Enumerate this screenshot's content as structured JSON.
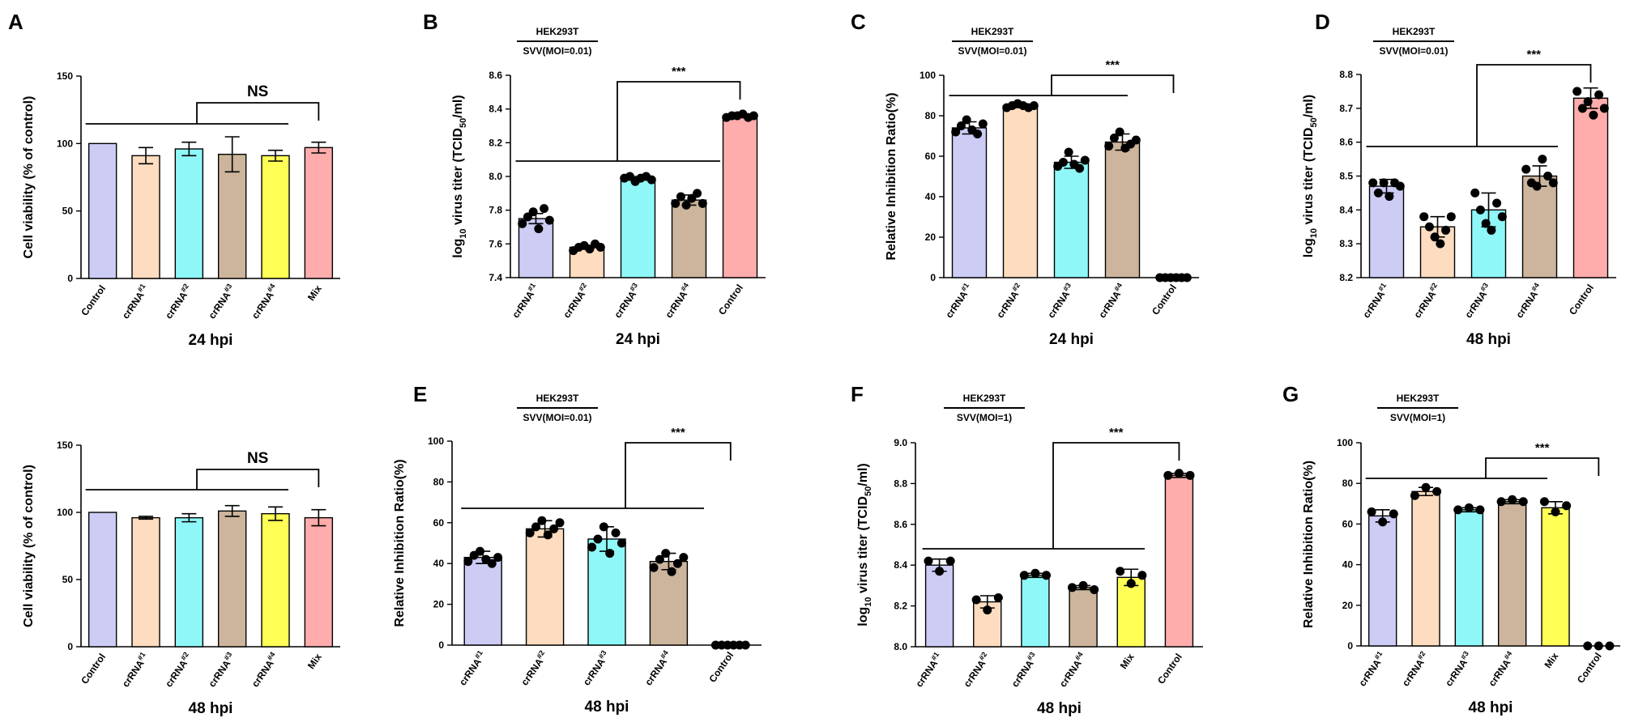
{
  "colors": {
    "crRNA#1": "#ccccf5",
    "crRNA#2": "#fddcbf",
    "crRNA#3": "#8ff7f7",
    "crRNA#4": "#ccb59c",
    "Mix": "#ffff55",
    "Control": "#ffacac",
    "ControlWhite": "#ccccf5"
  },
  "chart_data": [
    {
      "id": "A1",
      "letter": "A",
      "type": "bar",
      "ylabel": "Cell viability (% of control)",
      "xlabel": "24 hpi",
      "ylim": [
        0,
        150
      ],
      "yticks": [
        "0",
        "50",
        "100",
        "150"
      ],
      "categories": [
        "Control",
        "crRNA",
        "crRNA",
        "crRNA",
        "crRNA",
        "Mix"
      ],
      "superscripts": [
        "",
        "#1",
        "#2",
        "#3",
        "#4",
        ""
      ],
      "colorKeys": [
        "ControlWhite",
        "crRNA#2",
        "crRNA#3",
        "crRNA#4",
        "Mix",
        "Control"
      ],
      "values": [
        100,
        91,
        96,
        92,
        91,
        97
      ],
      "errors": [
        0,
        6,
        5,
        13,
        4,
        4
      ],
      "significance": "NS"
    },
    {
      "id": "A2",
      "letter": "",
      "type": "bar",
      "ylabel": "Cell viability (% of control)",
      "xlabel": "48 hpi",
      "ylim": [
        0,
        150
      ],
      "yticks": [
        "0",
        "50",
        "100",
        "150"
      ],
      "categories": [
        "Control",
        "crRNA",
        "crRNA",
        "crRNA",
        "crRNA",
        "Mix"
      ],
      "superscripts": [
        "",
        "#1",
        "#2",
        "#3",
        "#4",
        ""
      ],
      "colorKeys": [
        "ControlWhite",
        "crRNA#2",
        "crRNA#3",
        "crRNA#4",
        "Mix",
        "Control"
      ],
      "values": [
        100,
        96,
        96,
        101,
        99,
        96
      ],
      "errors": [
        0,
        1,
        3,
        4,
        5,
        6
      ],
      "significance": "NS"
    },
    {
      "id": "B",
      "letter": "B",
      "type": "bar",
      "header": "HEK293T",
      "subheader": "SVV(MOI=0.01)",
      "ylabel": "log10 virus titer (TCID50/ml)",
      "xlabel": "24 hpi",
      "ylim": [
        7.4,
        8.6
      ],
      "yticks": [
        "7.4",
        "7.6",
        "7.8",
        "8.0",
        "8.2",
        "8.4",
        "8.6"
      ],
      "categories": [
        "crRNA",
        "crRNA",
        "crRNA",
        "crRNA",
        "Control"
      ],
      "superscripts": [
        "#1",
        "#2",
        "#3",
        "#4",
        ""
      ],
      "colorKeys": [
        "crRNA#1",
        "crRNA#2",
        "crRNA#3",
        "crRNA#4",
        "Control"
      ],
      "values": [
        7.75,
        7.58,
        7.99,
        7.86,
        8.36
      ],
      "errors": [
        0.03,
        0.01,
        0.01,
        0.03,
        0.01
      ],
      "points": [
        [
          7.72,
          7.76,
          7.79,
          7.69,
          7.81,
          7.74
        ],
        [
          7.56,
          7.58,
          7.59,
          7.57,
          7.6,
          7.58
        ],
        [
          7.99,
          8.0,
          7.97,
          7.99,
          8.0,
          7.98
        ],
        [
          7.84,
          7.88,
          7.83,
          7.87,
          7.9,
          7.84
        ],
        [
          8.35,
          8.36,
          8.36,
          8.37,
          8.35,
          8.36
        ]
      ],
      "significance": "***"
    },
    {
      "id": "C",
      "letter": "C",
      "type": "bar",
      "header": "HEK293T",
      "subheader": "SVV(MOI=0.01)",
      "ylabel": "Relative Inhibition Ratio(%)",
      "xlabel": "24 hpi",
      "ylim": [
        0,
        100
      ],
      "yticks": [
        "0",
        "20",
        "40",
        "60",
        "80",
        "100"
      ],
      "categories": [
        "crRNA",
        "crRNA",
        "crRNA",
        "crRNA",
        "Control"
      ],
      "superscripts": [
        "#1",
        "#2",
        "#3",
        "#4",
        ""
      ],
      "colorKeys": [
        "crRNA#1",
        "crRNA#2",
        "crRNA#3",
        "crRNA#4",
        "Control"
      ],
      "values": [
        74,
        85,
        57,
        67,
        0
      ],
      "errors": [
        3,
        1,
        3,
        4,
        0
      ],
      "points": [
        [
          72,
          75,
          78,
          73,
          71,
          76
        ],
        [
          84,
          85,
          86,
          85,
          84,
          85
        ],
        [
          55,
          57,
          62,
          56,
          54,
          58
        ],
        [
          65,
          69,
          72,
          64,
          66,
          68
        ],
        [
          0,
          0,
          0,
          0,
          0,
          0
        ]
      ],
      "significance": "***"
    },
    {
      "id": "D",
      "letter": "D",
      "type": "bar",
      "header": "HEK293T",
      "subheader": "SVV(MOI=0.01)",
      "ylabel": "log10 virus titer (TCID50/ml)",
      "xlabel": "48 hpi",
      "ylim": [
        8.2,
        8.8
      ],
      "yticks": [
        "8.2",
        "8.3",
        "8.4",
        "8.5",
        "8.6",
        "8.7",
        "8.8"
      ],
      "categories": [
        "crRNA",
        "crRNA",
        "crRNA",
        "crRNA",
        "Control"
      ],
      "superscripts": [
        "#1",
        "#2",
        "#3",
        "#4",
        ""
      ],
      "colorKeys": [
        "crRNA#1",
        "crRNA#2",
        "crRNA#3",
        "crRNA#4",
        "Control"
      ],
      "values": [
        8.47,
        8.35,
        8.4,
        8.5,
        8.73
      ],
      "errors": [
        0.02,
        0.03,
        0.05,
        0.03,
        0.03
      ],
      "points": [
        [
          8.48,
          8.45,
          8.48,
          8.44,
          8.48,
          8.47
        ],
        [
          8.38,
          8.35,
          8.32,
          8.3,
          8.34,
          8.38
        ],
        [
          8.45,
          8.4,
          8.36,
          8.34,
          8.42,
          8.38
        ],
        [
          8.52,
          8.48,
          8.47,
          8.55,
          8.5,
          8.48
        ],
        [
          8.75,
          8.7,
          8.72,
          8.68,
          8.74,
          8.7
        ]
      ],
      "significance": "***"
    },
    {
      "id": "E",
      "letter": "E",
      "type": "bar",
      "header": "HEK293T",
      "subheader": "SVV(MOI=0.01)",
      "ylabel": "Relative Inhibition Ratio(%)",
      "xlabel": "48 hpi",
      "ylim": [
        0,
        100
      ],
      "yticks": [
        "0",
        "20",
        "40",
        "60",
        "80",
        "100"
      ],
      "categories": [
        "crRNA",
        "crRNA",
        "crRNA",
        "crRNA",
        "Control"
      ],
      "superscripts": [
        "#1",
        "#2",
        "#3",
        "#4",
        ""
      ],
      "colorKeys": [
        "crRNA#1",
        "crRNA#2",
        "crRNA#3",
        "crRNA#4",
        "Control"
      ],
      "values": [
        43,
        57,
        52,
        41,
        0
      ],
      "errors": [
        3,
        4,
        6,
        4,
        0
      ],
      "points": [
        [
          41,
          44,
          46,
          42,
          40,
          43
        ],
        [
          55,
          58,
          61,
          54,
          57,
          60
        ],
        [
          48,
          52,
          58,
          45,
          55,
          50
        ],
        [
          38,
          42,
          45,
          36,
          40,
          43
        ],
        [
          0,
          0,
          0,
          0,
          0,
          0
        ]
      ],
      "significance": "***"
    },
    {
      "id": "F",
      "letter": "F",
      "type": "bar",
      "header": "HEK293T",
      "subheader": "SVV(MOI=1)",
      "ylabel": "log10 virus titer (TCID50/ml)",
      "xlabel": "48 hpi",
      "ylim": [
        8.0,
        9.0
      ],
      "yticks": [
        "8.0",
        "8.2",
        "8.4",
        "8.6",
        "8.8",
        "9.0"
      ],
      "categories": [
        "crRNA",
        "crRNA",
        "crRNA",
        "crRNA",
        "Mix",
        "Control"
      ],
      "superscripts": [
        "#1",
        "#2",
        "#3",
        "#4",
        "",
        ""
      ],
      "colorKeys": [
        "crRNA#1",
        "crRNA#2",
        "crRNA#3",
        "crRNA#4",
        "Mix",
        "Control"
      ],
      "values": [
        8.4,
        8.22,
        8.35,
        8.29,
        8.34,
        8.84
      ],
      "errors": [
        0.03,
        0.03,
        0.01,
        0.01,
        0.04,
        0.01
      ],
      "points": [
        [
          8.42,
          8.37,
          8.42
        ],
        [
          8.23,
          8.18,
          8.24
        ],
        [
          8.35,
          8.36,
          8.35
        ],
        [
          8.29,
          8.3,
          8.28
        ],
        [
          8.37,
          8.31,
          8.35
        ],
        [
          8.84,
          8.85,
          8.84
        ]
      ],
      "significance": "***"
    },
    {
      "id": "G",
      "letter": "G",
      "type": "bar",
      "header": "HEK293T",
      "subheader": "SVV(MOI=1)",
      "ylabel": "Relative Inhibition Ratio(%)",
      "xlabel": "48 hpi",
      "ylim": [
        0,
        100
      ],
      "yticks": [
        "0",
        "20",
        "40",
        "60",
        "80",
        "100"
      ],
      "categories": [
        "crRNA",
        "crRNA",
        "crRNA",
        "crRNA",
        "Mix",
        "Control"
      ],
      "superscripts": [
        "#1",
        "#2",
        "#3",
        "#4",
        "",
        ""
      ],
      "colorKeys": [
        "crRNA#1",
        "crRNA#2",
        "crRNA#3",
        "crRNA#4",
        "Mix",
        "Control"
      ],
      "values": [
        64,
        76,
        67,
        71,
        68,
        0
      ],
      "errors": [
        3,
        2,
        1,
        1,
        3,
        0
      ],
      "points": [
        [
          66,
          61,
          65
        ],
        [
          74,
          78,
          76
        ],
        [
          67,
          68,
          67
        ],
        [
          71,
          72,
          71
        ],
        [
          71,
          66,
          69
        ],
        [
          0,
          0,
          0
        ]
      ],
      "significance": "***"
    }
  ]
}
